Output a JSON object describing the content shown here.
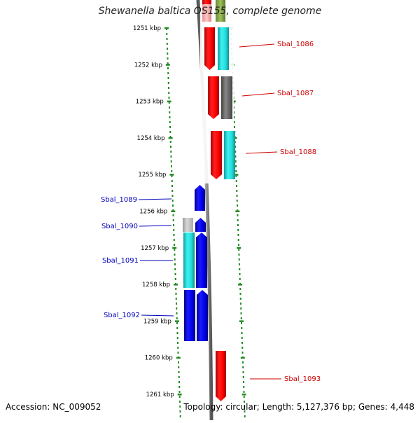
{
  "title": "Shewanella baltica OS155, complete genome",
  "footer": {
    "accession": "Accession: NC_009052",
    "summary": "Topology: circular; Length: 5,127,376 bp; Genes: 4,448"
  },
  "scale": {
    "ticks": [
      {
        "kbp": 1251,
        "label": "1251 kbp"
      },
      {
        "kbp": 1252,
        "label": "1252 kbp"
      },
      {
        "kbp": 1253,
        "label": "1253 kbp"
      },
      {
        "kbp": 1254,
        "label": "1254 kbp"
      },
      {
        "kbp": 1255,
        "label": "1255 kbp"
      },
      {
        "kbp": 1256,
        "label": "1256 kbp"
      },
      {
        "kbp": 1257,
        "label": "1257 kbp"
      },
      {
        "kbp": 1258,
        "label": "1258 kbp"
      },
      {
        "kbp": 1259,
        "label": "1259 kbp"
      },
      {
        "kbp": 1260,
        "label": "1260 kbp"
      },
      {
        "kbp": 1261,
        "label": "1261 kbp"
      }
    ]
  },
  "colors": {
    "forward_gene": "#ff0000",
    "reverse_gene": "#0000ee",
    "forward_label": "#cc0000",
    "reverse_label": "#0000bb",
    "cyan_feature": "#22dddd",
    "gray_feature": "#777777",
    "tick_green": "#228b22",
    "backbone": "#808080"
  },
  "genes": [
    {
      "label": "Sbal_1086",
      "strand": "forward"
    },
    {
      "label": "Sbal_1087",
      "strand": "forward"
    },
    {
      "label": "Sbal_1088",
      "strand": "forward"
    },
    {
      "label": "Sbal_1089",
      "strand": "reverse"
    },
    {
      "label": "Sbal_1090",
      "strand": "reverse"
    },
    {
      "label": "Sbal_1091",
      "strand": "reverse"
    },
    {
      "label": "Sbal_1092",
      "strand": "reverse"
    },
    {
      "label": "Sbal_1093",
      "strand": "forward"
    }
  ]
}
